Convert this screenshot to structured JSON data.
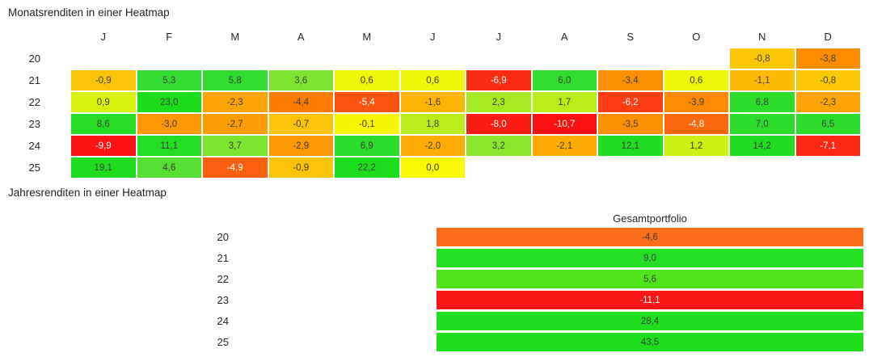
{
  "page": {
    "background": "#ffffff",
    "label_color": "#262626",
    "value_color": "#3c3c3c",
    "value_color_inverse": "#ffffff"
  },
  "monthly": {
    "title": "Monatsrenditen in einer Heatmap",
    "columns": [
      "J",
      "F",
      "M",
      "A",
      "M",
      "J",
      "J",
      "A",
      "S",
      "O",
      "N",
      "D"
    ],
    "rows": [
      {
        "year": "20",
        "cells": [
          null,
          null,
          null,
          null,
          null,
          null,
          null,
          null,
          null,
          null,
          {
            "v": "-0,8",
            "c": "#FCC808"
          },
          {
            "v": "-3,8",
            "c": "#FC8C02"
          }
        ]
      },
      {
        "year": "21",
        "cells": [
          {
            "v": "-0,9",
            "c": "#FCC408"
          },
          {
            "v": "5,3",
            "c": "#32DE32"
          },
          {
            "v": "5,8",
            "c": "#30DE30"
          },
          {
            "v": "3,6",
            "c": "#7DE52F"
          },
          {
            "v": "0,6",
            "c": "#EFF607"
          },
          {
            "v": "0,6",
            "c": "#EFF607"
          },
          {
            "v": "-6,9",
            "c": "#FC2C12",
            "w": true
          },
          {
            "v": "6,0",
            "c": "#2FDE2F"
          },
          {
            "v": "-3,4",
            "c": "#FC9002"
          },
          {
            "v": "0,6",
            "c": "#EFF607"
          },
          {
            "v": "-1,1",
            "c": "#FCBC06"
          },
          {
            "v": "-0,8",
            "c": "#FCC808"
          }
        ]
      },
      {
        "year": "22",
        "cells": [
          {
            "v": "0,9",
            "c": "#D9F20E"
          },
          {
            "v": "23,0",
            "c": "#1BDE1B"
          },
          {
            "v": "-2,3",
            "c": "#FCA404"
          },
          {
            "v": "-4,4",
            "c": "#FC7C02"
          },
          {
            "v": "-5,4",
            "c": "#FC5410",
            "w": true
          },
          {
            "v": "-1,6",
            "c": "#FCB405"
          },
          {
            "v": "2,3",
            "c": "#A3EA22"
          },
          {
            "v": "1,7",
            "c": "#BAED17"
          },
          {
            "v": "-6,2",
            "c": "#FC3C12",
            "w": true
          },
          {
            "v": "-3,9",
            "c": "#FC8A02"
          },
          {
            "v": "6,8",
            "c": "#2CDE2C"
          },
          {
            "v": "-2,3",
            "c": "#FCA404"
          }
        ]
      },
      {
        "year": "23",
        "cells": [
          {
            "v": "8,6",
            "c": "#27DE27"
          },
          {
            "v": "-3,0",
            "c": "#FC9803"
          },
          {
            "v": "-2,7",
            "c": "#FC9C03"
          },
          {
            "v": "-0,7",
            "c": "#FCC409"
          },
          {
            "v": "-0,1",
            "c": "#FAF405"
          },
          {
            "v": "1,8",
            "c": "#B8ED18"
          },
          {
            "v": "-8,0",
            "c": "#FC1C14",
            "w": true
          },
          {
            "v": "-10,7",
            "c": "#FC1010",
            "w": true
          },
          {
            "v": "-3,5",
            "c": "#FC9002"
          },
          {
            "v": "-4,8",
            "c": "#FC660C",
            "w": true
          },
          {
            "v": "7,0",
            "c": "#2BDE2B"
          },
          {
            "v": "6,5",
            "c": "#2DDE2D"
          }
        ]
      },
      {
        "year": "24",
        "cells": [
          {
            "v": "-9,9",
            "c": "#FC1414",
            "w": true
          },
          {
            "v": "11,1",
            "c": "#23DE23"
          },
          {
            "v": "3,7",
            "c": "#7BE52F"
          },
          {
            "v": "-2,9",
            "c": "#FC9803"
          },
          {
            "v": "6,9",
            "c": "#2BDE2B"
          },
          {
            "v": "-2,0",
            "c": "#FCAC04"
          },
          {
            "v": "3,2",
            "c": "#8AE72C"
          },
          {
            "v": "-2,1",
            "c": "#FCAA04"
          },
          {
            "v": "12,1",
            "c": "#22DE22"
          },
          {
            "v": "1,2",
            "c": "#CCF014"
          },
          {
            "v": "14,2",
            "c": "#20DE20"
          },
          {
            "v": "-7,1",
            "c": "#FC2813",
            "w": true
          }
        ]
      },
      {
        "year": "25",
        "cells": [
          {
            "v": "19,1",
            "c": "#1EDE1E"
          },
          {
            "v": "4,6",
            "c": "#55E032"
          },
          {
            "v": "-4,9",
            "c": "#FC5E10",
            "w": true
          },
          {
            "v": "-0,9",
            "c": "#FCC408"
          },
          {
            "v": "22,2",
            "c": "#1CDE1C"
          },
          {
            "v": "0,0",
            "c": "#FAF803"
          },
          null,
          null,
          null,
          null,
          null,
          null
        ]
      }
    ]
  },
  "yearly": {
    "title": "Jahresrenditen in einer Heatmap",
    "column_header": "Gesamtportfolio",
    "rows": [
      {
        "year": "20",
        "value": "-4,6",
        "color": "#FC6E1C"
      },
      {
        "year": "21",
        "value": "9,0",
        "color": "#26E026"
      },
      {
        "year": "22",
        "value": "5,6",
        "color": "#50E51A"
      },
      {
        "year": "23",
        "value": "-11,1",
        "color": "#FB1616",
        "white_text": true
      },
      {
        "year": "24",
        "value": "28,4",
        "color": "#1FE01F"
      },
      {
        "year": "25",
        "value": "43,5",
        "color": "#1CE01C"
      }
    ]
  },
  "chart_data": [
    {
      "type": "heatmap",
      "title": "Monatsrenditen in einer Heatmap",
      "x_labels": [
        "J",
        "F",
        "M",
        "A",
        "M",
        "J",
        "J",
        "A",
        "S",
        "O",
        "N",
        "D"
      ],
      "y_labels": [
        "20",
        "21",
        "22",
        "23",
        "24",
        "25"
      ],
      "values": [
        [
          null,
          null,
          null,
          null,
          null,
          null,
          null,
          null,
          null,
          null,
          -0.8,
          -3.8
        ],
        [
          -0.9,
          5.3,
          5.8,
          3.6,
          0.6,
          0.6,
          -6.9,
          6.0,
          -3.4,
          0.6,
          -1.1,
          -0.8
        ],
        [
          0.9,
          23.0,
          -2.3,
          -4.4,
          -5.4,
          -1.6,
          2.3,
          1.7,
          -6.2,
          -3.9,
          6.8,
          -2.3
        ],
        [
          8.6,
          -3.0,
          -2.7,
          -0.7,
          -0.1,
          1.8,
          -8.0,
          -10.7,
          -3.5,
          -4.8,
          7.0,
          6.5
        ],
        [
          -9.9,
          11.1,
          3.7,
          -2.9,
          6.9,
          -2.0,
          3.2,
          -2.1,
          12.1,
          1.2,
          14.2,
          -7.1
        ],
        [
          19.1,
          4.6,
          -4.9,
          -0.9,
          22.2,
          0.0,
          null,
          null,
          null,
          null,
          null,
          null
        ]
      ],
      "colormap": "red-yellow-green",
      "colormap_hint": {
        "red": "#FC1010",
        "yellow": "#FAF803",
        "green": "#1BDE1B"
      },
      "decimal_separator": ","
    },
    {
      "type": "heatmap",
      "title": "Jahresrenditen in einer Heatmap",
      "x_labels": [
        "Gesamtportfolio"
      ],
      "y_labels": [
        "20",
        "21",
        "22",
        "23",
        "24",
        "25"
      ],
      "values": [
        [
          -4.6
        ],
        [
          9.0
        ],
        [
          5.6
        ],
        [
          -11.1
        ],
        [
          28.4
        ],
        [
          43.5
        ]
      ],
      "colormap": "red-yellow-green",
      "decimal_separator": ","
    }
  ]
}
